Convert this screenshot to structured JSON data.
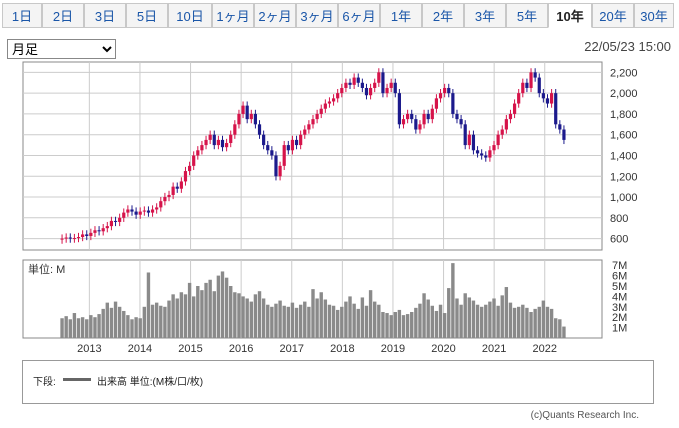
{
  "tabs": [
    {
      "label": "1日",
      "active": false
    },
    {
      "label": "2日",
      "active": false
    },
    {
      "label": "3日",
      "active": false
    },
    {
      "label": "5日",
      "active": false
    },
    {
      "label": "10日",
      "active": false
    },
    {
      "label": "1ヶ月",
      "active": false
    },
    {
      "label": "2ヶ月",
      "active": false
    },
    {
      "label": "3ヶ月",
      "active": false
    },
    {
      "label": "6ヶ月",
      "active": false
    },
    {
      "label": "1年",
      "active": false
    },
    {
      "label": "2年",
      "active": false
    },
    {
      "label": "3年",
      "active": false
    },
    {
      "label": "5年",
      "active": false
    },
    {
      "label": "10年",
      "active": true
    },
    {
      "label": "20年",
      "active": false
    },
    {
      "label": "30年",
      "active": false
    }
  ],
  "range_select": {
    "value": "月足",
    "options": [
      "月足"
    ]
  },
  "timestamp": "22/05/23 15:00",
  "colors": {
    "up": "#d6134a",
    "down": "#1c1a8c",
    "volume": "#8a8a8a",
    "grid": "#cccccc",
    "frame": "#888888"
  },
  "chart_data": {
    "type": "candlestick",
    "price_axis": {
      "ticks": [
        600,
        800,
        1000,
        1200,
        1400,
        1600,
        1800,
        2000,
        2200
      ],
      "tick_labels": [
        "600",
        "800",
        "1,000",
        "1,200",
        "1,400",
        "1,600",
        "1,800",
        "2,000",
        "2,200"
      ],
      "range": [
        490,
        2300
      ]
    },
    "x_axis": {
      "ticks": [
        2013,
        2014,
        2015,
        2016,
        2017,
        2018,
        2019,
        2020,
        2021,
        2022
      ],
      "tick_labels": [
        "2013",
        "2014",
        "2015",
        "2016",
        "2017",
        "2018",
        "2019",
        "2020",
        "2021",
        "2022"
      ],
      "start": 2012.42,
      "end": 2022.42
    },
    "close_series": [
      600,
      610,
      600,
      605,
      615,
      640,
      625,
      655,
      680,
      670,
      700,
      720,
      770,
      760,
      800,
      850,
      880,
      860,
      830,
      860,
      870,
      850,
      880,
      900,
      960,
      1000,
      1020,
      1100,
      1080,
      1150,
      1250,
      1300,
      1400,
      1450,
      1500,
      1550,
      1600,
      1500,
      1550,
      1480,
      1520,
      1600,
      1700,
      1800,
      1880,
      1750,
      1800,
      1700,
      1600,
      1500,
      1450,
      1400,
      1200,
      1300,
      1500,
      1450,
      1550,
      1500,
      1600,
      1650,
      1700,
      1750,
      1800,
      1850,
      1900,
      1920,
      1950,
      2000,
      2050,
      2100,
      2080,
      2150,
      2100,
      2050,
      1980,
      2050,
      2100,
      2200,
      2000,
      2050,
      2100,
      2000,
      1700,
      1750,
      1800,
      1750,
      1650,
      1700,
      1800,
      1750,
      1850,
      1950,
      2000,
      2050,
      2000,
      1800,
      1750,
      1700,
      1500,
      1600,
      1450,
      1420,
      1400,
      1380,
      1450,
      1500,
      1600,
      1650,
      1750,
      1800,
      1900,
      2000,
      2100,
      2050,
      2200,
      2150,
      2000,
      1950,
      1900,
      2000,
      1700,
      1650,
      1550
    ],
    "volume_axis": {
      "unit_label": "単位: M",
      "ticks": [
        1,
        2,
        3,
        4,
        5,
        6,
        7
      ],
      "tick_labels": [
        "1M",
        "2M",
        "3M",
        "4M",
        "5M",
        "6M",
        "7M"
      ],
      "max": 7.5
    },
    "volume_series": [
      1.9,
      2.1,
      1.8,
      2.4,
      1.9,
      2.0,
      1.8,
      2.2,
      2.0,
      2.3,
      2.8,
      3.4,
      2.9,
      3.5,
      3.0,
      2.6,
      2.2,
      1.8,
      2.0,
      1.9,
      3.0,
      6.3,
      3.2,
      3.4,
      3.1,
      3.0,
      3.6,
      4.2,
      3.8,
      4.4,
      4.2,
      5.3,
      4.0,
      5.0,
      4.6,
      5.3,
      5.6,
      4.5,
      6.0,
      6.4,
      5.8,
      5.0,
      4.4,
      4.3,
      4.0,
      3.8,
      3.5,
      4.2,
      4.5,
      3.8,
      3.2,
      3.0,
      3.3,
      3.6,
      3.1,
      3.0,
      3.4,
      2.9,
      3.2,
      3.5,
      3.0,
      4.7,
      3.8,
      4.4,
      3.7,
      3.2,
      3.1,
      2.7,
      3.0,
      3.5,
      4.0,
      3.3,
      2.8,
      3.9,
      3.1,
      4.6,
      3.5,
      3.2,
      2.5,
      2.4,
      2.2,
      2.5,
      2.7,
      2.2,
      2.3,
      2.5,
      2.9,
      3.3,
      4.3,
      3.7,
      3.1,
      2.6,
      3.2,
      2.4,
      4.8,
      7.2,
      3.8,
      3.2,
      4.3,
      3.9,
      3.6,
      3.2,
      3.0,
      3.2,
      3.5,
      3.8,
      3.1,
      4.1,
      4.9,
      3.4,
      2.9,
      3.0,
      3.2,
      2.9,
      2.5,
      2.8,
      3.0,
      3.6,
      3.0,
      2.8,
      1.9,
      1.8,
      1.1
    ]
  },
  "legend": {
    "label": "下段:",
    "text": "出来高 単位:(M株/口/枚)"
  },
  "copyright": "(c)Quants Research Inc."
}
